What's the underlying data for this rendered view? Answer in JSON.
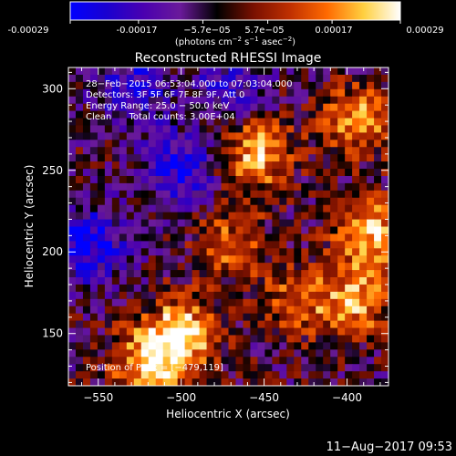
{
  "colorbar": {
    "ticks": [
      "-0.00029",
      "-0.00017",
      "−5.7e−05",
      "5.7e−05",
      "0.00017",
      "0.00029"
    ],
    "tick_values": [
      -0.00029,
      -0.00017,
      -5.7e-05,
      5.7e-05,
      0.00017,
      0.00029
    ],
    "unit_prefix": "(photons cm",
    "unit_exp1": "−2",
    "unit_mid": " s",
    "unit_exp2": "−1",
    "unit_mid2": " asec",
    "unit_exp3": "−2",
    "unit_suffix": ")",
    "range": [
      -0.00029,
      0.00029
    ],
    "colormap": [
      "#0000ff",
      "#1a00d0",
      "#4a00b0",
      "#6a1a9a",
      "#000000",
      "#7a1000",
      "#c03000",
      "#ff6a00",
      "#ffd040",
      "#ffffff"
    ]
  },
  "chart_data": {
    "type": "heatmap",
    "title": "Reconstructed RHESSI Image",
    "xlabel": "Heliocentric X (arcsec)",
    "ylabel": "Heliocentric Y (arcsec)",
    "xlim": [
      -568,
      -375
    ],
    "ylim": [
      118,
      313
    ],
    "x_ticks": [
      -550,
      -500,
      -450,
      -400
    ],
    "y_ticks": [
      150,
      200,
      250,
      300
    ],
    "x_tick_labels": [
      "−550",
      "−500",
      "−450",
      "−400"
    ],
    "y_tick_labels": [
      "150",
      "200",
      "250",
      "300"
    ],
    "annotations": [
      "28−Feb−2015 06:53:04.000 to 07:03:04.000",
      "Detectors: 3F 5F 6F 7F 8F 9F, Att 0",
      "Energy Range: 25.0 − 50.0 keV",
      "Clean      Total counts: 3.00E+04"
    ],
    "peak_label": "Position of Peak = [−479,119]",
    "peak": [
      -479,
      119
    ],
    "bright_regions": [
      {
        "x": -455,
        "y": 260,
        "intensity": 0.9
      },
      {
        "x": -500,
        "y": 150,
        "intensity": 1.0
      },
      {
        "x": -520,
        "y": 130,
        "intensity": 0.95
      },
      {
        "x": -395,
        "y": 280,
        "intensity": 0.8
      },
      {
        "x": -385,
        "y": 210,
        "intensity": 0.95
      },
      {
        "x": -395,
        "y": 170,
        "intensity": 0.8
      },
      {
        "x": -470,
        "y": 205,
        "intensity": 0.6
      },
      {
        "x": -430,
        "y": 170,
        "intensity": 0.55
      }
    ],
    "dark_regions": [
      {
        "x": -555,
        "y": 205,
        "intensity": -0.8
      },
      {
        "x": -530,
        "y": 300,
        "intensity": -0.6
      },
      {
        "x": -500,
        "y": 250,
        "intensity": -0.7
      },
      {
        "x": -470,
        "y": 300,
        "intensity": -0.5
      }
    ]
  },
  "footer": {
    "date": "11−Aug−2017 09:53"
  }
}
